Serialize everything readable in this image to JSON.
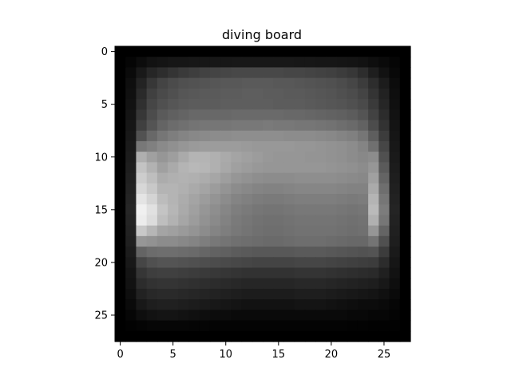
{
  "chart_data": {
    "type": "heatmap",
    "title": "diving board",
    "xlabel": "",
    "ylabel": "",
    "colormap": "gray",
    "rows": 28,
    "cols": 28,
    "xlim": [
      -0.5,
      27.5
    ],
    "ylim": [
      27.5,
      -0.5
    ],
    "x_ticks": [
      0,
      5,
      10,
      15,
      20,
      25
    ],
    "y_ticks": [
      0,
      5,
      10,
      15,
      20,
      25
    ],
    "grid": false,
    "values": [
      [
        0,
        0,
        0,
        0,
        0,
        0,
        0,
        0,
        0,
        0,
        0,
        0,
        0,
        0,
        0,
        0,
        0,
        0,
        0,
        0,
        0,
        0,
        0,
        0,
        0,
        0,
        0,
        0
      ],
      [
        0,
        5,
        12,
        18,
        20,
        22,
        22,
        23,
        23,
        23,
        23,
        24,
        24,
        24,
        24,
        24,
        24,
        23,
        23,
        22,
        22,
        21,
        20,
        18,
        14,
        10,
        5,
        0
      ],
      [
        0,
        10,
        25,
        38,
        45,
        52,
        58,
        62,
        66,
        68,
        70,
        72,
        72,
        72,
        72,
        72,
        70,
        70,
        68,
        66,
        64,
        60,
        55,
        45,
        30,
        18,
        8,
        0
      ],
      [
        0,
        14,
        35,
        55,
        68,
        75,
        80,
        82,
        84,
        86,
        88,
        88,
        90,
        90,
        90,
        88,
        88,
        86,
        84,
        82,
        80,
        76,
        70,
        60,
        45,
        28,
        12,
        0
      ],
      [
        0,
        16,
        42,
        64,
        74,
        80,
        86,
        88,
        90,
        90,
        92,
        92,
        94,
        94,
        92,
        92,
        90,
        90,
        88,
        86,
        84,
        80,
        76,
        68,
        52,
        34,
        14,
        0
      ],
      [
        0,
        18,
        48,
        70,
        80,
        86,
        90,
        92,
        92,
        92,
        94,
        94,
        94,
        94,
        94,
        92,
        92,
        92,
        90,
        88,
        86,
        84,
        80,
        74,
        58,
        38,
        16,
        0
      ],
      [
        0,
        20,
        55,
        76,
        90,
        96,
        100,
        104,
        104,
        104,
        104,
        106,
        106,
        106,
        106,
        106,
        104,
        104,
        102,
        100,
        98,
        96,
        92,
        84,
        66,
        44,
        18,
        0
      ],
      [
        0,
        22,
        64,
        84,
        100,
        108,
        112,
        116,
        118,
        118,
        118,
        120,
        120,
        120,
        122,
        120,
        120,
        118,
        118,
        116,
        114,
        110,
        106,
        98,
        76,
        50,
        20,
        0
      ],
      [
        0,
        24,
        82,
        104,
        118,
        126,
        132,
        136,
        138,
        140,
        140,
        142,
        142,
        142,
        142,
        142,
        140,
        140,
        140,
        138,
        136,
        132,
        128,
        118,
        94,
        60,
        22,
        0
      ],
      [
        0,
        26,
        120,
        128,
        138,
        144,
        150,
        154,
        156,
        156,
        156,
        156,
        154,
        152,
        152,
        152,
        152,
        150,
        150,
        148,
        146,
        144,
        140,
        132,
        112,
        70,
        24,
        0
      ],
      [
        0,
        28,
        175,
        160,
        150,
        158,
        170,
        180,
        180,
        176,
        170,
        164,
        160,
        156,
        152,
        150,
        150,
        150,
        148,
        148,
        146,
        144,
        140,
        136,
        140,
        80,
        26,
        0
      ],
      [
        0,
        30,
        195,
        178,
        160,
        170,
        180,
        184,
        182,
        176,
        168,
        160,
        156,
        152,
        150,
        150,
        150,
        150,
        150,
        150,
        148,
        146,
        144,
        140,
        150,
        90,
        28,
        0
      ],
      [
        0,
        32,
        205,
        190,
        172,
        176,
        178,
        176,
        172,
        166,
        158,
        150,
        146,
        142,
        140,
        140,
        140,
        142,
        142,
        142,
        142,
        140,
        138,
        136,
        160,
        100,
        30,
        0
      ],
      [
        0,
        34,
        215,
        200,
        180,
        180,
        176,
        170,
        164,
        156,
        148,
        140,
        136,
        132,
        130,
        130,
        132,
        134,
        134,
        134,
        134,
        132,
        130,
        130,
        170,
        110,
        32,
        0
      ],
      [
        0,
        36,
        228,
        212,
        188,
        180,
        172,
        164,
        156,
        148,
        140,
        132,
        128,
        124,
        122,
        122,
        124,
        126,
        126,
        126,
        126,
        124,
        122,
        124,
        180,
        118,
        34,
        0
      ],
      [
        0,
        38,
        240,
        225,
        196,
        182,
        170,
        160,
        150,
        142,
        134,
        126,
        122,
        118,
        116,
        116,
        118,
        120,
        120,
        120,
        120,
        118,
        116,
        118,
        186,
        124,
        36,
        0
      ],
      [
        0,
        36,
        236,
        220,
        190,
        178,
        166,
        156,
        146,
        138,
        130,
        122,
        118,
        114,
        112,
        112,
        114,
        116,
        116,
        116,
        116,
        114,
        112,
        114,
        176,
        118,
        34,
        0
      ],
      [
        0,
        34,
        200,
        182,
        164,
        160,
        154,
        148,
        140,
        132,
        126,
        120,
        116,
        112,
        110,
        110,
        112,
        114,
        114,
        114,
        114,
        112,
        110,
        112,
        150,
        100,
        32,
        0
      ],
      [
        0,
        32,
        150,
        146,
        140,
        140,
        136,
        132,
        126,
        120,
        116,
        112,
        110,
        108,
        106,
        106,
        108,
        110,
        110,
        110,
        108,
        106,
        104,
        104,
        116,
        80,
        30,
        0
      ],
      [
        0,
        28,
        100,
        108,
        110,
        110,
        108,
        106,
        102,
        98,
        96,
        92,
        90,
        88,
        88,
        88,
        88,
        90,
        90,
        90,
        88,
        86,
        84,
        82,
        84,
        60,
        26,
        0
      ],
      [
        0,
        24,
        70,
        80,
        84,
        84,
        82,
        80,
        78,
        76,
        74,
        72,
        70,
        68,
        68,
        68,
        68,
        70,
        70,
        70,
        68,
        66,
        64,
        62,
        60,
        44,
        22,
        0
      ],
      [
        0,
        20,
        54,
        62,
        64,
        64,
        62,
        60,
        58,
        56,
        54,
        52,
        50,
        50,
        50,
        50,
        50,
        52,
        52,
        52,
        50,
        48,
        46,
        44,
        42,
        32,
        18,
        0
      ],
      [
        0,
        18,
        44,
        50,
        52,
        52,
        50,
        48,
        46,
        44,
        42,
        40,
        38,
        38,
        38,
        38,
        38,
        40,
        40,
        40,
        38,
        36,
        34,
        32,
        30,
        24,
        14,
        0
      ],
      [
        0,
        14,
        34,
        40,
        42,
        42,
        40,
        38,
        36,
        34,
        32,
        30,
        28,
        28,
        28,
        28,
        28,
        30,
        30,
        30,
        28,
        26,
        24,
        22,
        20,
        16,
        10,
        0
      ],
      [
        0,
        10,
        24,
        30,
        32,
        32,
        30,
        28,
        26,
        24,
        22,
        20,
        18,
        18,
        18,
        18,
        18,
        20,
        20,
        20,
        18,
        16,
        14,
        12,
        12,
        10,
        6,
        0
      ],
      [
        0,
        6,
        14,
        18,
        20,
        20,
        18,
        16,
        14,
        12,
        12,
        10,
        10,
        10,
        10,
        10,
        10,
        10,
        10,
        10,
        10,
        10,
        8,
        8,
        6,
        6,
        4,
        0
      ],
      [
        0,
        2,
        4,
        6,
        6,
        6,
        6,
        5,
        5,
        4,
        4,
        4,
        4,
        4,
        4,
        4,
        4,
        4,
        4,
        4,
        4,
        4,
        3,
        3,
        2,
        2,
        2,
        0
      ],
      [
        0,
        0,
        0,
        0,
        0,
        0,
        0,
        0,
        0,
        0,
        0,
        0,
        0,
        0,
        0,
        0,
        0,
        0,
        0,
        0,
        0,
        0,
        0,
        0,
        0,
        0,
        0,
        0
      ]
    ]
  }
}
